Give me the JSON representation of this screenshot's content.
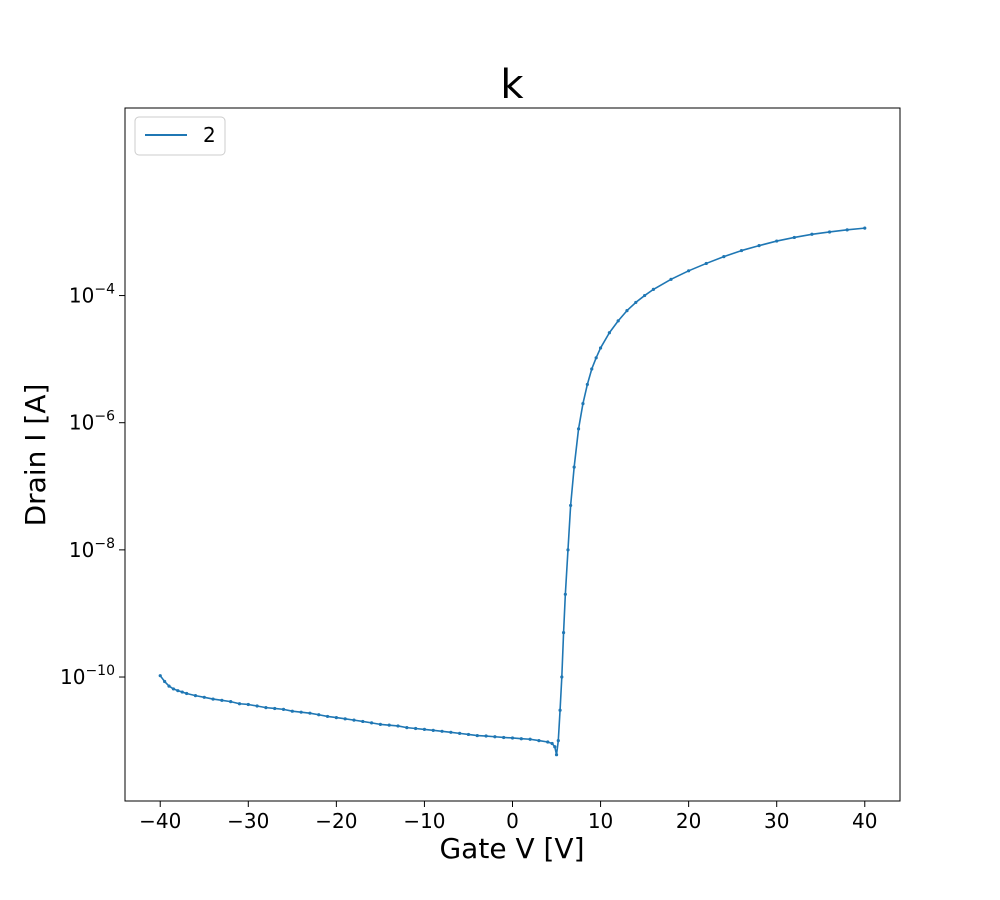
{
  "chart_data": {
    "type": "line",
    "title": "k",
    "xlabel": "Gate V [V]",
    "ylabel": "Drain I [A]",
    "xlim": [
      -44,
      44
    ],
    "ylim_log10": [
      -11.95,
      -1.05
    ],
    "yscale": "log",
    "grid": false,
    "legend_position": "top-left",
    "x_ticks": [
      {
        "value": -40,
        "label": "−40"
      },
      {
        "value": -30,
        "label": "−30"
      },
      {
        "value": -20,
        "label": "−20"
      },
      {
        "value": -10,
        "label": "−10"
      },
      {
        "value": 0,
        "label": "0"
      },
      {
        "value": 10,
        "label": "10"
      },
      {
        "value": 20,
        "label": "20"
      },
      {
        "value": 30,
        "label": "30"
      },
      {
        "value": 40,
        "label": "40"
      }
    ],
    "y_ticks": [
      {
        "value": 1e-10,
        "base": "10",
        "exp": "−10"
      },
      {
        "value": 1e-08,
        "base": "10",
        "exp": "−8"
      },
      {
        "value": 1e-06,
        "base": "10",
        "exp": "−6"
      },
      {
        "value": 0.0001,
        "base": "10",
        "exp": "−4"
      }
    ],
    "series": [
      {
        "name": "2",
        "color": "#1f77b4",
        "x": [
          -40,
          -39.5,
          -39,
          -38.5,
          -38,
          -37.5,
          -37,
          -36,
          -35,
          -34,
          -33,
          -32,
          -31,
          -30,
          -29,
          -28,
          -27,
          -26,
          -25,
          -24,
          -23,
          -22,
          -21,
          -20,
          -19,
          -18,
          -17,
          -16,
          -15,
          -14,
          -13,
          -12,
          -11,
          -10,
          -9,
          -8,
          -7,
          -6,
          -5,
          -4,
          -3,
          -2,
          -1,
          0,
          1,
          2,
          3,
          4,
          4.5,
          4.8,
          5.0,
          5.2,
          5.4,
          5.6,
          5.8,
          6.0,
          6.3,
          6.6,
          7.0,
          7.5,
          8.0,
          8.5,
          9.0,
          9.5,
          10,
          11,
          12,
          13,
          14,
          15,
          16,
          18,
          20,
          22,
          24,
          26,
          28,
          30,
          32,
          34,
          36,
          38,
          40
        ],
        "y": [
          1.05e-10,
          8.5e-11,
          7.2e-11,
          6.5e-11,
          6.1e-11,
          5.8e-11,
          5.5e-11,
          5.1e-11,
          4.8e-11,
          4.5e-11,
          4.3e-11,
          4.1e-11,
          3.8e-11,
          3.7e-11,
          3.5e-11,
          3.3e-11,
          3.2e-11,
          3.1e-11,
          2.9e-11,
          2.8e-11,
          2.7e-11,
          2.55e-11,
          2.4e-11,
          2.3e-11,
          2.2e-11,
          2.1e-11,
          2e-11,
          1.9e-11,
          1.8e-11,
          1.75e-11,
          1.7e-11,
          1.6e-11,
          1.55e-11,
          1.5e-11,
          1.45e-11,
          1.4e-11,
          1.35e-11,
          1.3e-11,
          1.25e-11,
          1.2e-11,
          1.18e-11,
          1.15e-11,
          1.12e-11,
          1.1e-11,
          1.07e-11,
          1.05e-11,
          1e-11,
          9.5e-12,
          9e-12,
          8e-12,
          6e-12,
          1e-11,
          3e-11,
          1e-10,
          5e-10,
          2e-09,
          1e-08,
          5e-08,
          2e-07,
          8e-07,
          2e-06,
          4e-06,
          7e-06,
          1.05e-05,
          1.5e-05,
          2.6e-05,
          4e-05,
          5.8e-05,
          7.8e-05,
          0.0001,
          0.000125,
          0.00018,
          0.000245,
          0.00032,
          0.00041,
          0.00051,
          0.00061,
          0.00072,
          0.00082,
          0.00092,
          0.001,
          0.00108,
          0.00115
        ]
      }
    ]
  }
}
